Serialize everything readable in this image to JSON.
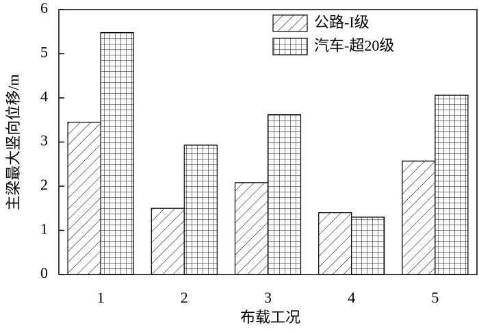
{
  "chart_data": {
    "type": "bar",
    "x_label": "布载工况",
    "y_label": "主梁最大竖向位移/m",
    "categories": [
      "1",
      "2",
      "3",
      "4",
      "5"
    ],
    "series": [
      {
        "name": "公路-I级",
        "color": "#000000",
        "pattern": "diagonal",
        "values": [
          3.45,
          1.5,
          2.08,
          1.4,
          2.57
        ]
      },
      {
        "name": "汽车-超20级",
        "color": "#000000",
        "pattern": "grid",
        "values": [
          5.48,
          2.93,
          3.62,
          1.3,
          4.06
        ]
      }
    ],
    "ylim": [
      0,
      6
    ],
    "yticks": [
      0,
      1,
      2,
      3,
      4,
      5,
      6
    ],
    "legend": "top-right"
  }
}
